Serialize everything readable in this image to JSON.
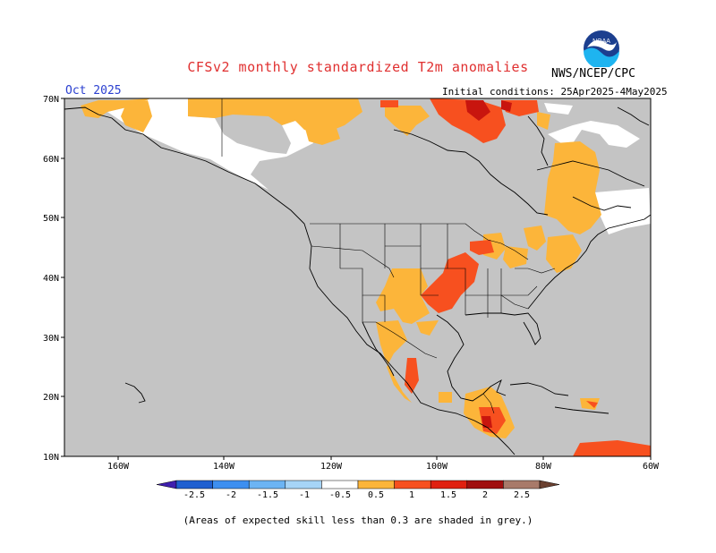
{
  "header": {
    "title": "CFSv2 monthly standardized T2m anomalies",
    "org": "NWS/NCEP/CPC",
    "logo_text": "NOAA",
    "month": "Oct 2025",
    "initial_conditions": "Initial conditions: 25Apr2025-4May2025"
  },
  "axes": {
    "lat_labels": [
      "70N",
      "60N",
      "50N",
      "40N",
      "30N",
      "20N",
      "10N"
    ],
    "lon_labels": [
      "160W",
      "140W",
      "120W",
      "100W",
      "80W",
      "60W"
    ]
  },
  "legend": {
    "labels": [
      "-2.5",
      "-2",
      "-1.5",
      "-1",
      "-0.5",
      "0.5",
      "1",
      "1.5",
      "2",
      "2.5"
    ],
    "colors": [
      "#3f1fae",
      "#1f5fd0",
      "#3d8ff0",
      "#6cb4f4",
      "#a6d4f7",
      "#ffffff",
      "#fcb53a",
      "#f7501f",
      "#e02010",
      "#a00f0f",
      "#a87a6a",
      "#6a4030"
    ]
  },
  "colors": {
    "skill_grey": "#c4c4c4",
    "near_normal": "#ffffff",
    "warm_05_1": "#fcb53a",
    "warm_1_15": "#f7501f",
    "warm_15_2": "#e02010",
    "warm_2_25": "#a00f0f"
  },
  "footer": "(Areas of expected skill less than 0.3 are shaded in grey.)"
}
